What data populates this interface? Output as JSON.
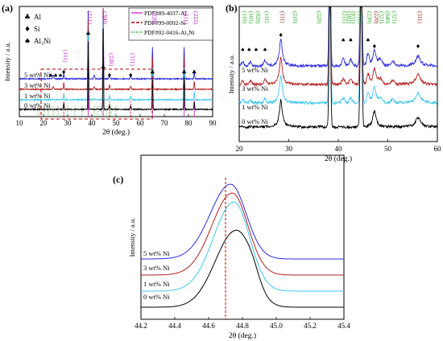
{
  "chart_data": [
    {
      "panel": "(a)",
      "type": "line",
      "xlabel": "2θ (deg.)",
      "ylabel": "Intensity / a.u.",
      "xlim": [
        10,
        90
      ],
      "xticks": [
        "10",
        "20",
        "30",
        "40",
        "50",
        "60",
        "70",
        "80",
        "90"
      ],
      "legend_markers": [
        {
          "symbol": "♣",
          "label": "Al"
        },
        {
          "symbol": "♦",
          "label": "Si"
        },
        {
          "symbol": "♠",
          "label": "Al₃Ni"
        }
      ],
      "pdf_legend": [
        "PDF#89-4037-Al",
        "PDF#99-0092-Si",
        "PDF#02-0416-Al₃Ni"
      ],
      "series": [
        {
          "name": "5 wt% Ni",
          "color": "#2a2ae0"
        },
        {
          "name": "3 wt% Ni",
          "color": "#b22222"
        },
        {
          "name": "1 wt% Ni",
          "color": "#3fc8f0"
        },
        {
          "name": "0 wt% Ni",
          "color": "#000000"
        }
      ],
      "peak_labels": [
        {
          "label": "(111)",
          "x": 28.4
        },
        {
          "label": "(111)",
          "x": 38.5
        },
        {
          "label": "(200)",
          "x": 44.7
        },
        {
          "label": "(220)",
          "x": 47.3
        },
        {
          "label": "(311)",
          "x": 56.1
        },
        {
          "label": "(220)",
          "x": 65.1
        },
        {
          "label": "(311)",
          "x": 78.2
        },
        {
          "label": "(222)",
          "x": 82.4
        }
      ],
      "peaks": {
        "Al": [
          38.5,
          44.7,
          65.1,
          78.2,
          82.4
        ],
        "Si": [
          28.4,
          47.3,
          56.1
        ],
        "Al3Ni": [
          20.5,
          22.5,
          24.5,
          25.5,
          41,
          42.5,
          46
        ]
      }
    },
    {
      "panel": "(b)",
      "type": "line",
      "xlabel": "2θ (deg.)",
      "ylabel": "Intensity / a.u.",
      "xlim": [
        20,
        60
      ],
      "xticks": [
        "20",
        "30",
        "40",
        "50",
        "60"
      ],
      "series": [
        {
          "name": "5 wt% Ni",
          "color": "#2a2ae0"
        },
        {
          "name": "3 wt% Ni",
          "color": "#b22222"
        },
        {
          "name": "1 wt% Ni",
          "color": "#3fc8f0"
        },
        {
          "name": "0 wt% Ni",
          "color": "#000000"
        }
      ],
      "peak_labels": [
        {
          "label": "(110)",
          "x": 20.7,
          "color": "#22aa22"
        },
        {
          "label": "(101)",
          "x": 22.0,
          "color": "#22aa22"
        },
        {
          "label": "(020)",
          "x": 23.4,
          "color": "#22aa22"
        },
        {
          "label": "(111)",
          "x": 25.2,
          "color": "#22aa22"
        },
        {
          "label": "(111)",
          "x": 28.4,
          "color": "#8b1a1a"
        },
        {
          "label": "(210)",
          "x": 30.9,
          "color": "#22aa22"
        },
        {
          "label": "(220)",
          "x": 35.8,
          "color": "#22aa22"
        },
        {
          "label": "(211)",
          "x": 40.9,
          "color": "#22aa22"
        },
        {
          "label": "(102)",
          "x": 41.8,
          "color": "#22aa22"
        },
        {
          "label": "(031)",
          "x": 42.7,
          "color": "#22aa22"
        },
        {
          "label": "(112)",
          "x": 44.0,
          "color": "#22aa22"
        },
        {
          "label": "(230)",
          "x": 45.9,
          "color": "#22aa22"
        },
        {
          "label": "(220)",
          "x": 47.3,
          "color": "#8b1a1a"
        },
        {
          "label": "(321)",
          "x": 48.4,
          "color": "#22aa22"
        },
        {
          "label": "(040)",
          "x": 49.6,
          "color": "#22aa22"
        },
        {
          "label": "(321)",
          "x": 51.0,
          "color": "#22aa22"
        },
        {
          "label": "(311)",
          "x": 56.1,
          "color": "#8b1a1a"
        }
      ]
    },
    {
      "panel": "(c)",
      "type": "line",
      "xlabel": "2θ (deg.)",
      "ylabel": "Intensity / a.u.",
      "xlim": [
        44.2,
        45.4
      ],
      "xticks": [
        "44.2",
        "44.4",
        "44.6",
        "44.8",
        "45.0",
        "45.2",
        "45.4"
      ],
      "reference_line_x": 44.7,
      "series": [
        {
          "name": "5 wt% Ni",
          "color": "#2a2ae0",
          "peak_x": 44.73
        },
        {
          "name": "3 wt% Ni",
          "color": "#b22222",
          "peak_x": 44.74
        },
        {
          "name": "1 wt% Ni",
          "color": "#3fc8f0",
          "peak_x": 44.75
        },
        {
          "name": "0 wt% Ni",
          "color": "#000000",
          "peak_x": 44.76
        }
      ]
    }
  ]
}
